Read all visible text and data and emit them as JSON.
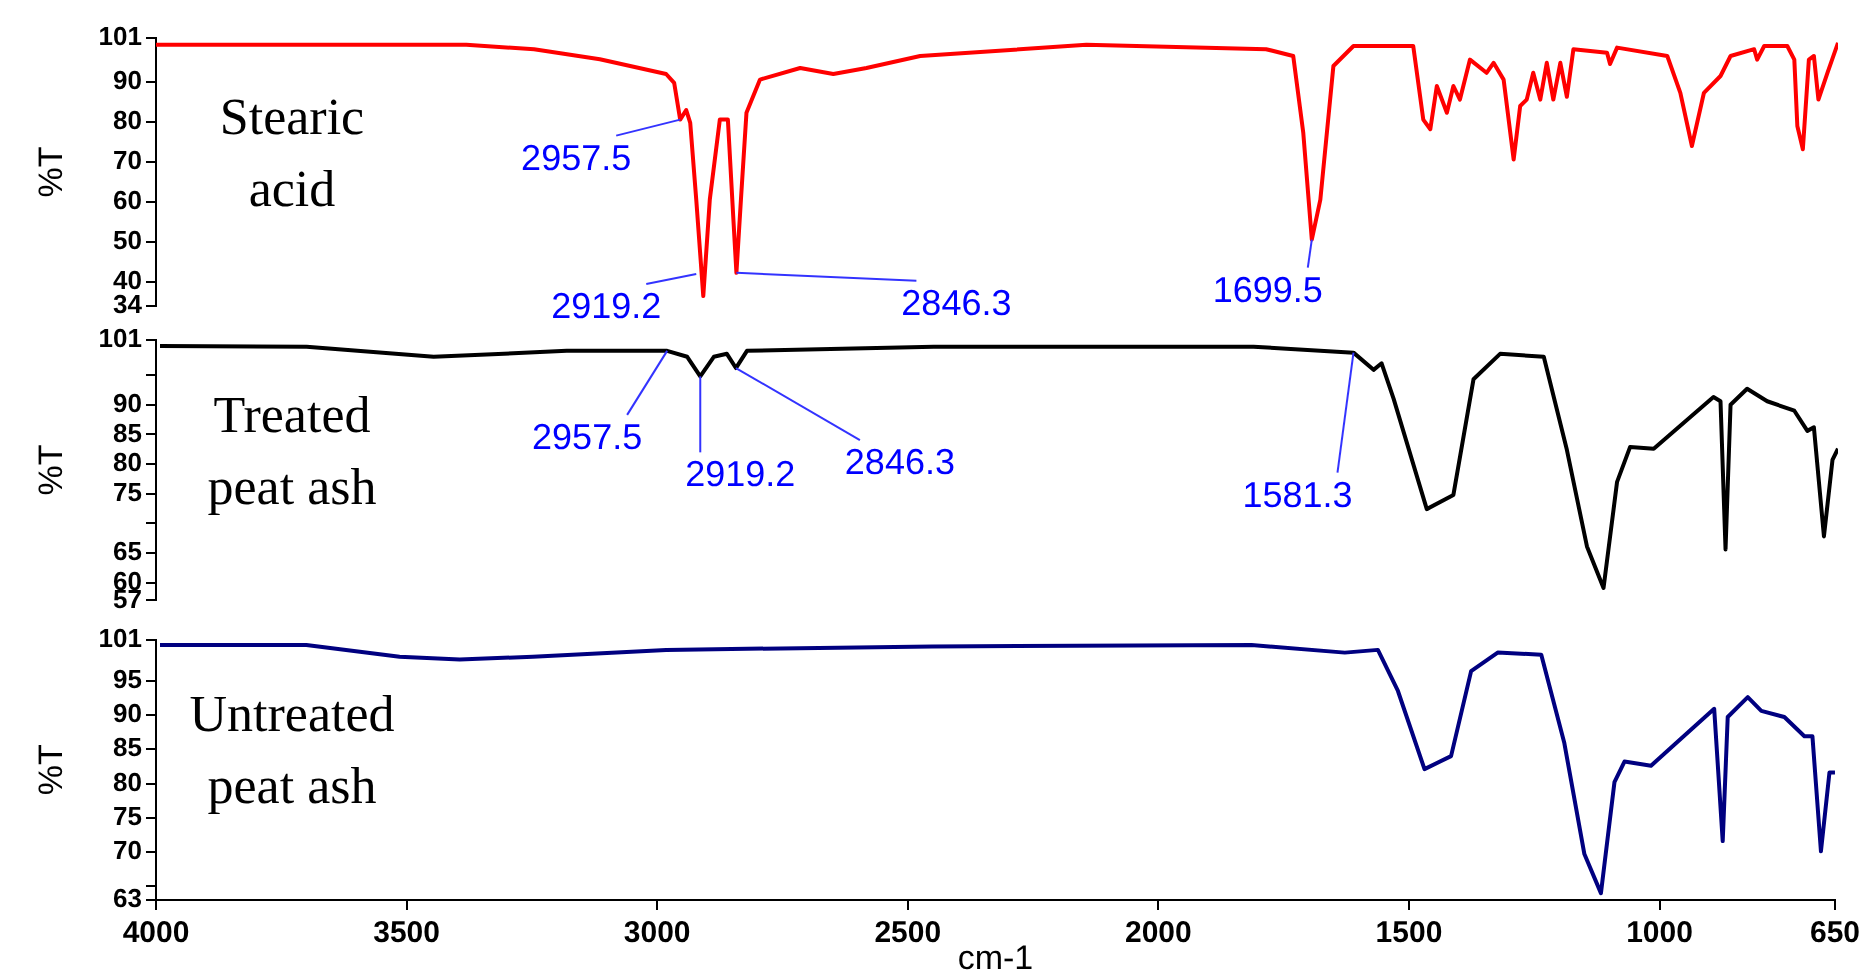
{
  "chart_data": [
    {
      "type": "line",
      "title": "Stearic acid",
      "ylabel": "%T",
      "xlim": [
        4000,
        650
      ],
      "xticks": [
        4000,
        3500,
        3000,
        2500,
        2000,
        1500,
        1000,
        650
      ],
      "ylim": [
        34,
        101
      ],
      "yticks": [
        34,
        40,
        50,
        60,
        70,
        80,
        90,
        101
      ],
      "tick_labels": "y",
      "series": [
        {
          "color": "#ff0000",
          "x": [
            4000,
            3382,
            3247,
            3116,
            2984,
            2968,
            2956,
            2944,
            2936,
            2924,
            2910,
            2897,
            2877,
            2861,
            2850,
            2844,
            2835,
            2824,
            2797,
            2717,
            2651,
            2585,
            2478,
            2147,
            1789,
            1735,
            1715,
            1698,
            1681,
            1655,
            1615,
            1496,
            1476,
            1462,
            1449,
            1429,
            1416,
            1403,
            1383,
            1350,
            1336,
            1316,
            1296,
            1283,
            1270,
            1257,
            1243,
            1230,
            1217,
            1203,
            1190,
            1177,
            1110,
            1104,
            1090,
            990,
            964,
            941,
            917,
            884,
            864,
            817,
            811,
            797,
            751,
            737,
            731,
            720,
            708,
            698,
            689,
            671,
            650
          ],
          "values": [
            99.3,
            99.3,
            98.2,
            95.7,
            92,
            89.8,
            80.6,
            83,
            79.8,
            60.6,
            36.5,
            60.6,
            80.6,
            80.6,
            55.6,
            42.3,
            60.6,
            82.3,
            90.6,
            93.5,
            92,
            93.5,
            96.5,
            99.3,
            98.2,
            96.5,
            77.3,
            50.6,
            60.6,
            94,
            99,
            99,
            80.6,
            78.2,
            89,
            82.3,
            89,
            85.6,
            95.6,
            92.3,
            94.8,
            90.6,
            70.6,
            84,
            85.6,
            92.3,
            85.6,
            94.8,
            85.6,
            94.8,
            86.3,
            98.2,
            97.3,
            94.5,
            98.6,
            96.5,
            87.3,
            74,
            87.3,
            91.5,
            96.5,
            98.2,
            95.6,
            99,
            99,
            95.6,
            79,
            73.2,
            95.6,
            96.5,
            85.6,
            92.3,
            99.8
          ]
        }
      ],
      "annotations": [
        {
          "text": "2957.5",
          "x": 2956,
          "y": 80.6
        },
        {
          "text": "2919.2",
          "x": 2924,
          "y": 42
        },
        {
          "text": "2846.3",
          "x": 2844,
          "y": 42.3
        },
        {
          "text": "1699.5",
          "x": 1698,
          "y": 50.6
        }
      ]
    },
    {
      "type": "line",
      "title": "Treated peat ash",
      "ylabel": "%T",
      "xlim": [
        4000,
        650
      ],
      "xticks": [
        4000,
        3500,
        3000,
        2500,
        2000,
        1500,
        1000,
        650
      ],
      "ylim": [
        57,
        101
      ],
      "yticks": [
        57,
        60,
        65,
        {
          "value": 70,
          "label": null
        },
        75,
        80,
        85,
        90,
        {
          "value": 95,
          "label": null
        },
        101
      ],
      "tick_labels": "y",
      "series": [
        {
          "color": "#000000",
          "x": [
            3992,
            3700,
            3447,
            3182,
            2982,
            2942,
            2916,
            2889,
            2863,
            2845,
            2823,
            2451,
            1814,
            1615,
            1575,
            1559,
            1535,
            1469,
            1416,
            1376,
            1323,
            1236,
            1190,
            1150,
            1117,
            1090,
            1064,
            1017,
            898,
            884,
            874,
            864,
            831,
            791,
            737,
            711,
            698,
            678,
            661,
            650
          ],
          "values": [
            99.9,
            99.8,
            98.1,
            99.1,
            99.1,
            98.1,
            94.8,
            98.1,
            98.6,
            96.2,
            99.1,
            99.8,
            99.8,
            98.8,
            95.9,
            97,
            91,
            72.4,
            74.8,
            94.3,
            98.6,
            98.1,
            82.4,
            66.1,
            59.1,
            77,
            82.9,
            82.6,
            91.3,
            90.6,
            65.6,
            90,
            92.7,
            90.6,
            89,
            85.6,
            86.2,
            67.8,
            80.7,
            82.6
          ]
        }
      ],
      "annotations": [
        {
          "text": "2957.5",
          "x": 2982,
          "y": 99.1
        },
        {
          "text": "2919.2",
          "x": 2916,
          "y": 94.8
        },
        {
          "text": "2846.3",
          "x": 2845,
          "y": 96.2
        },
        {
          "text": "1581.3",
          "x": 1615,
          "y": 98.8
        }
      ]
    },
    {
      "type": "line",
      "title": "Untreated peat ash",
      "ylabel": "%T",
      "xlabel": "cm-1",
      "xlim": [
        4000,
        650
      ],
      "xticks": [
        4000,
        3500,
        3000,
        2500,
        2000,
        1500,
        1000,
        650
      ],
      "ylim": [
        63,
        101
      ],
      "yticks": [
        63,
        {
          "value": 65,
          "label": null
        },
        70,
        75,
        80,
        85,
        90,
        95,
        101
      ],
      "series": [
        {
          "color": "#000080",
          "x": [
            3992,
            3700,
            3514,
            3394,
            3248,
            2982,
            2451,
            1814,
            1628,
            1562,
            1522,
            1469,
            1416,
            1376,
            1323,
            1236,
            1190,
            1150,
            1117,
            1090,
            1070,
            1017,
            891,
            874,
            864,
            824,
            797,
            751,
            711,
            695,
            678,
            661,
            650
          ],
          "values": [
            100.2,
            100.2,
            98.5,
            98.1,
            98.5,
            99.5,
            100,
            100.2,
            99.1,
            99.5,
            93.5,
            82.1,
            84,
            96.4,
            99.1,
            98.8,
            85.9,
            69.7,
            64,
            80.2,
            83.2,
            82.6,
            90.9,
            71.6,
            89.7,
            92.6,
            90.6,
            89.7,
            86.9,
            86.9,
            70.1,
            81.6,
            81.6
          ]
        }
      ]
    }
  ]
}
